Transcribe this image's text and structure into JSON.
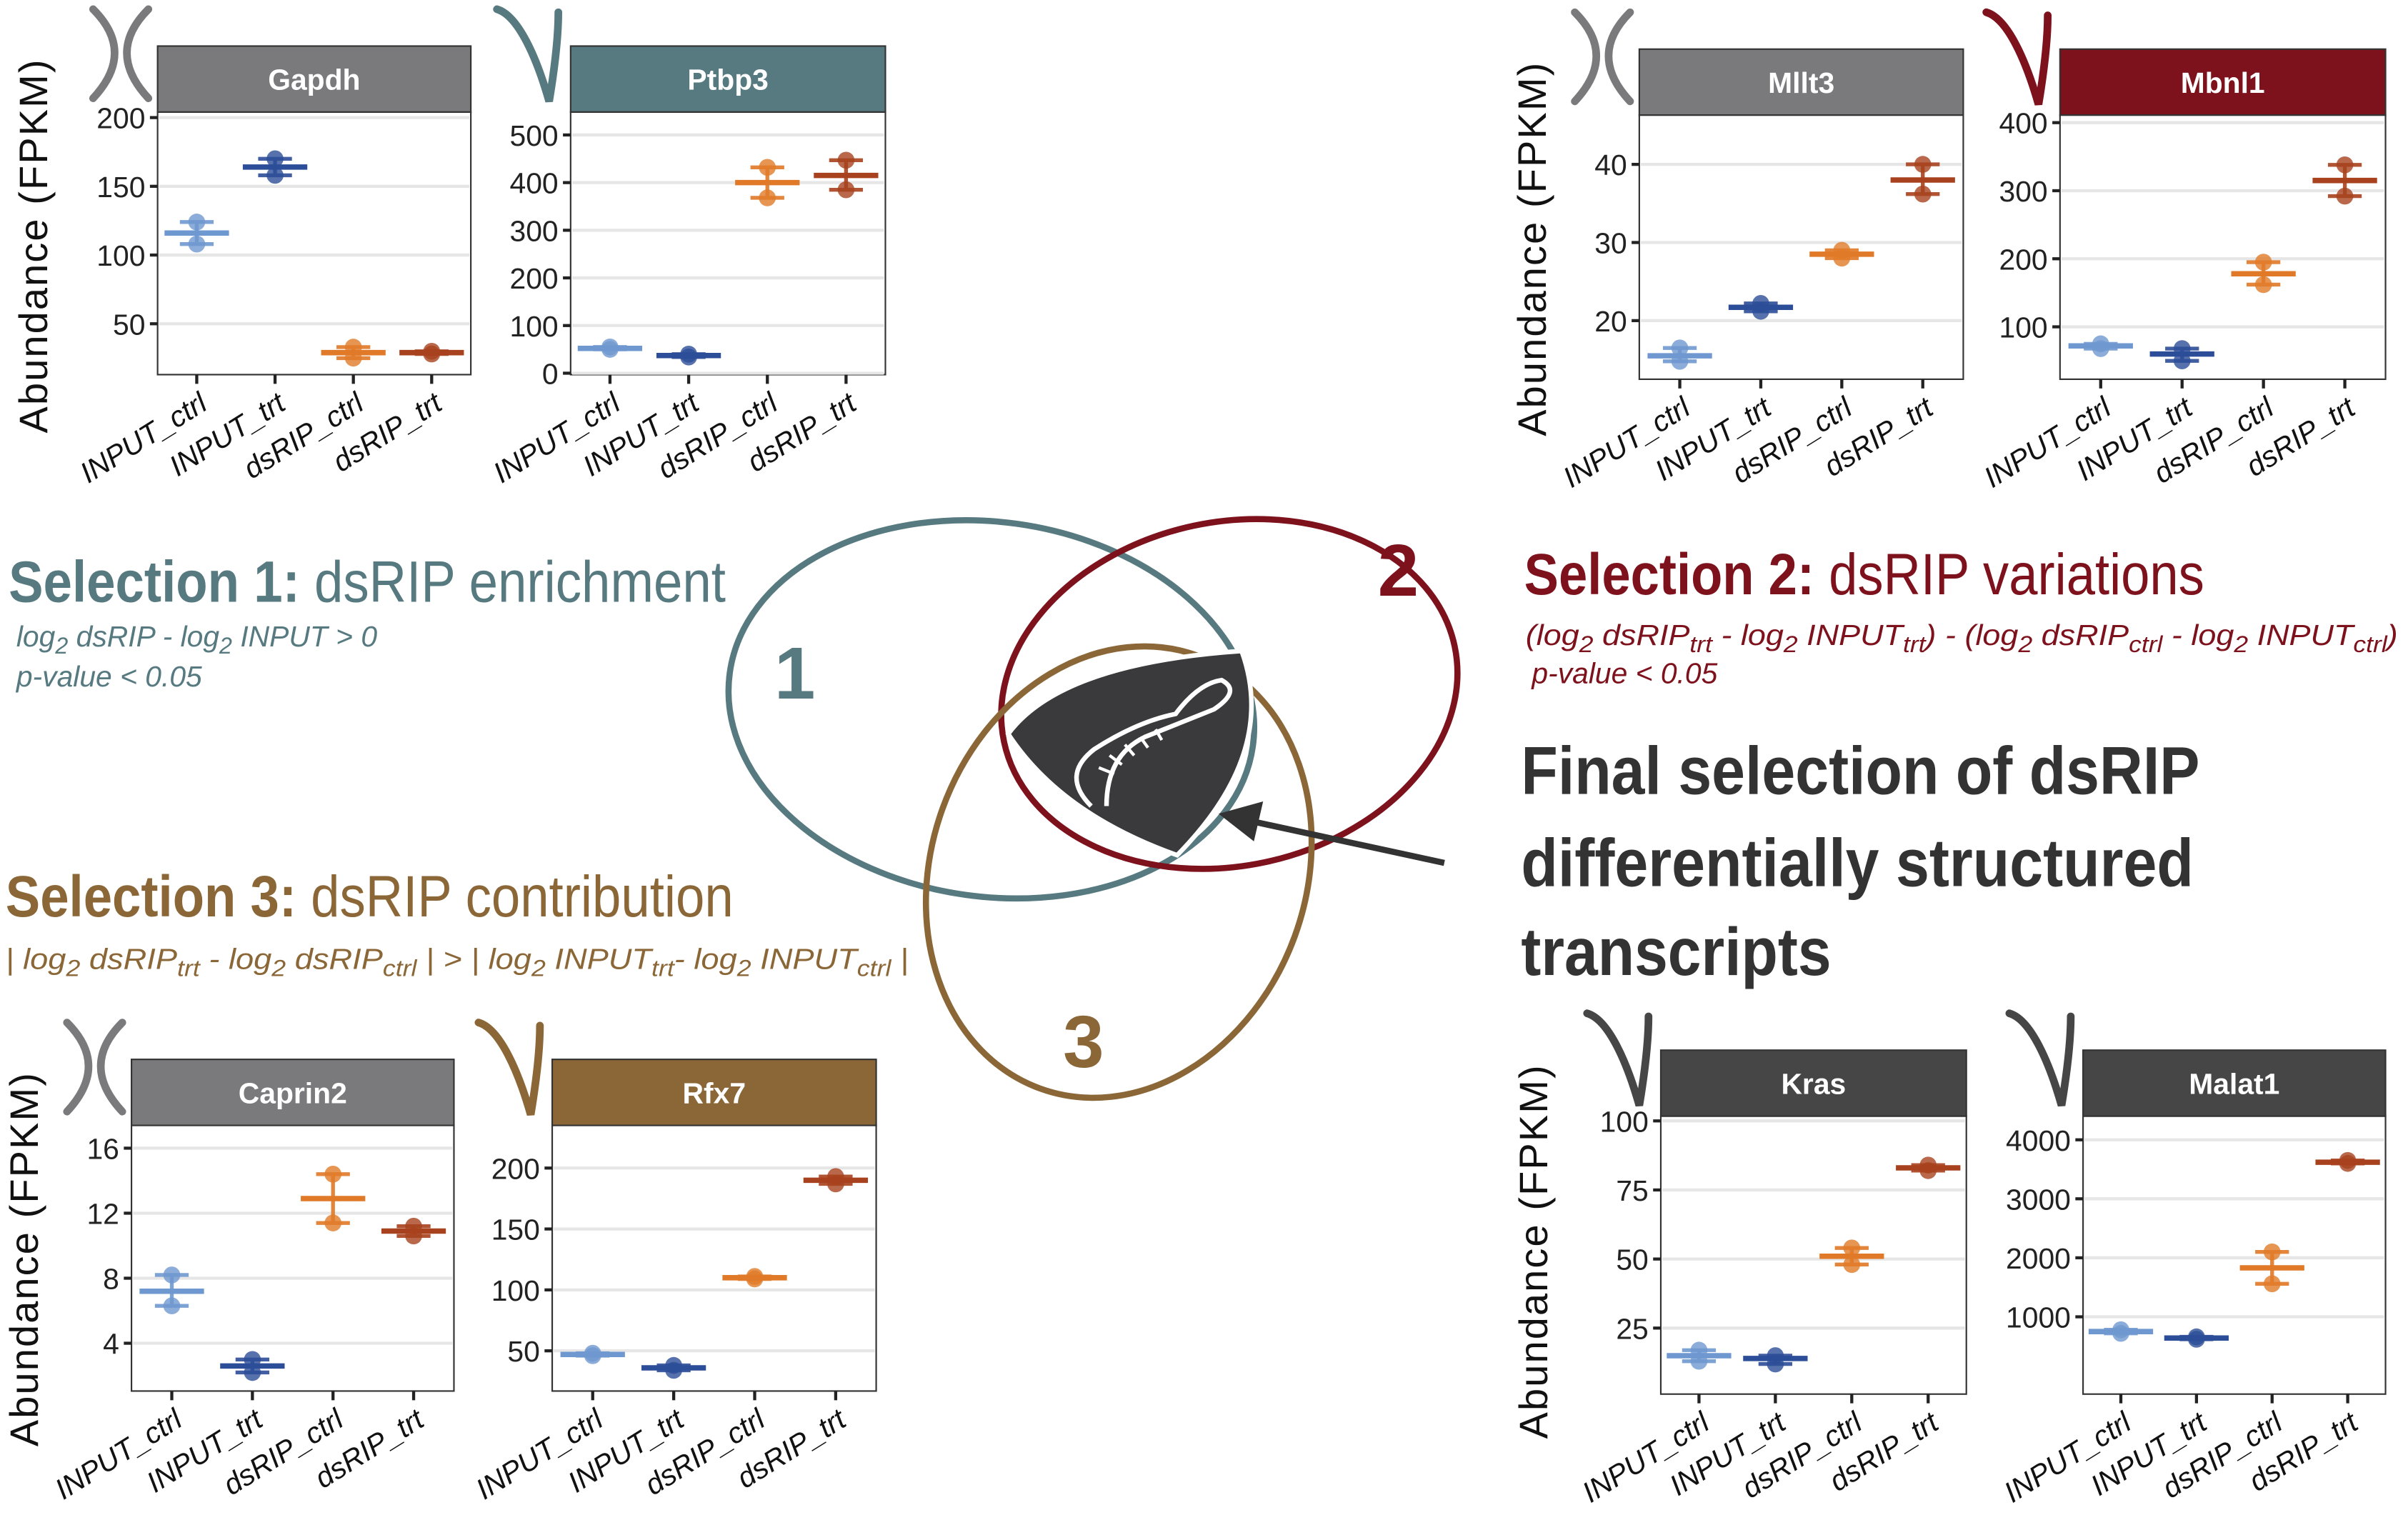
{
  "colors": {
    "INPUT_ctrl": "#6f98d0",
    "INPUT_trt": "#2c4d97",
    "dsRIP_ctrl": "#e07a28",
    "dsRIP_trt": "#a8421e",
    "selection1": "#567a80",
    "selection2": "#7d121d",
    "selection3": "#8b6737",
    "final": "#333333",
    "neutral": "#7a7a7c"
  },
  "ylabel": "Abundance (FPKM)",
  "selection1": {
    "bold": "Selection 1:",
    "rest": " dsRIP enrichment",
    "formula": [
      {
        "t": "log"
      },
      {
        "t": "2",
        "sub": true
      },
      {
        "t": " dsRIP - log"
      },
      {
        "t": "2",
        "sub": true
      },
      {
        "t": " INPUT >  0"
      }
    ],
    "pvalue": "p-value < 0.05"
  },
  "selection2": {
    "bold": "Selection 2:",
    "rest": " dsRIP variations",
    "formula": [
      {
        "t": "(log"
      },
      {
        "t": "2",
        "sub": true
      },
      {
        "t": " dsRIP"
      },
      {
        "t": "trt",
        "sub": true
      },
      {
        "t": " - log"
      },
      {
        "t": "2",
        "sub": true
      },
      {
        "t": " INPUT"
      },
      {
        "t": "trt",
        "sub": true
      },
      {
        "t": ") - (log"
      },
      {
        "t": "2",
        "sub": true
      },
      {
        "t": " dsRIP"
      },
      {
        "t": "ctrl",
        "sub": true
      },
      {
        "t": " - log"
      },
      {
        "t": "2",
        "sub": true
      },
      {
        "t": " INPUT"
      },
      {
        "t": "ctrl",
        "sub": true
      },
      {
        "t": ")"
      }
    ],
    "pvalue": "p-value < 0.05"
  },
  "selection3": {
    "bold": "Selection 3:",
    "rest": " dsRIP contribution",
    "formula": [
      {
        "t": "| log"
      },
      {
        "t": "2",
        "sub": true
      },
      {
        "t": " dsRIP"
      },
      {
        "t": "trt",
        "sub": true
      },
      {
        "t": " - log"
      },
      {
        "t": "2",
        "sub": true
      },
      {
        "t": " dsRIP"
      },
      {
        "t": "ctrl",
        "sub": true
      },
      {
        "t": " | > | log"
      },
      {
        "t": "2",
        "sub": true
      },
      {
        "t": " INPUT"
      },
      {
        "t": "trt",
        "sub": true
      },
      {
        "t": "- log"
      },
      {
        "t": "2",
        "sub": true
      },
      {
        "t": " INPUT"
      },
      {
        "t": "ctrl",
        "sub": true
      },
      {
        "t": " |"
      }
    ]
  },
  "venn": {
    "labels": [
      "1",
      "2",
      "3"
    ],
    "center_icon": "dsRNA-shield-icon"
  },
  "final_selection": {
    "lines": [
      "Final selection of dsRIP",
      "differentially structured",
      "transcripts"
    ]
  },
  "chart_data": [
    {
      "type": "scatter",
      "title": "Gapdh",
      "strip_color": "#7a7a7c",
      "icon": "cross-icon",
      "ylabel": "Abundance (FPKM)",
      "categories": [
        "INPUT_ctrl",
        "INPUT_trt",
        "dsRIP_ctrl",
        "dsRIP_trt"
      ],
      "yticks": [
        50,
        100,
        150,
        200
      ],
      "ylim": [
        13,
        204
      ],
      "grid": true,
      "replicates": [
        [
          124,
          108
        ],
        [
          170,
          158
        ],
        [
          33,
          25
        ],
        [
          30,
          28
        ]
      ],
      "means": [
        116,
        164,
        29,
        29
      ]
    },
    {
      "type": "scatter",
      "title": "Ptbp3",
      "strip_color": "#567a80",
      "icon": "check-icon",
      "categories": [
        "INPUT_ctrl",
        "INPUT_trt",
        "dsRIP_ctrl",
        "dsRIP_trt"
      ],
      "yticks": [
        0,
        100,
        200,
        300,
        400,
        500
      ],
      "ylim": [
        -3,
        548
      ],
      "grid": true,
      "replicates": [
        [
          55,
          50
        ],
        [
          40,
          34
        ],
        [
          432,
          368
        ],
        [
          447,
          385
        ]
      ],
      "means": [
        52,
        37,
        400,
        415
      ]
    },
    {
      "type": "scatter",
      "title": "Mllt3",
      "strip_color": "#7a7a7c",
      "icon": "cross-icon",
      "ylabel": "Abundance (FPKM)",
      "categories": [
        "INPUT_ctrl",
        "INPUT_trt",
        "dsRIP_ctrl",
        "dsRIP_trt"
      ],
      "yticks": [
        20,
        30,
        40
      ],
      "ylim": [
        12.5,
        46.3
      ],
      "grid": true,
      "replicates": [
        [
          16.5,
          14.8
        ],
        [
          22.2,
          21.2
        ],
        [
          29,
          28
        ],
        [
          40,
          36.2
        ]
      ],
      "means": [
        15.5,
        21.7,
        28.5,
        38
      ]
    },
    {
      "type": "scatter",
      "title": "Mbnl1",
      "strip_color": "#7d121d",
      "icon": "check-icon",
      "categories": [
        "INPUT_ctrl",
        "INPUT_trt",
        "dsRIP_ctrl",
        "dsRIP_trt"
      ],
      "yticks": [
        100,
        200,
        300,
        400
      ],
      "ylim": [
        23,
        411
      ],
      "grid": true,
      "replicates": [
        [
          75,
          68
        ],
        [
          68,
          50
        ],
        [
          195,
          162
        ],
        [
          338,
          292
        ]
      ],
      "means": [
        72,
        60,
        178,
        315
      ]
    },
    {
      "type": "scatter",
      "title": "Caprin2",
      "strip_color": "#7a7a7c",
      "icon": "cross-icon",
      "ylabel": "Abundance (FPKM)",
      "categories": [
        "INPUT_ctrl",
        "INPUT_trt",
        "dsRIP_ctrl",
        "dsRIP_trt"
      ],
      "yticks": [
        4,
        8,
        12,
        16
      ],
      "ylim": [
        1.06,
        17.4
      ],
      "grid": true,
      "replicates": [
        [
          8.2,
          6.3
        ],
        [
          3.0,
          2.2
        ],
        [
          14.4,
          11.4
        ],
        [
          11.2,
          10.6
        ]
      ],
      "means": [
        7.2,
        2.6,
        12.9,
        10.9
      ]
    },
    {
      "type": "scatter",
      "title": "Rfx7",
      "strip_color": "#8b6737",
      "icon": "check-icon",
      "categories": [
        "INPUT_ctrl",
        "INPUT_trt",
        "dsRIP_ctrl",
        "dsRIP_trt"
      ],
      "yticks": [
        50,
        100,
        150,
        200
      ],
      "ylim": [
        17,
        235
      ],
      "grid": true,
      "replicates": [
        [
          48,
          46
        ],
        [
          38,
          34
        ],
        [
          111,
          109
        ],
        [
          193,
          187
        ]
      ],
      "means": [
        47,
        36,
        110,
        190
      ]
    },
    {
      "type": "scatter",
      "title": "Kras",
      "strip_color": "#464646",
      "icon": "check-icon",
      "ylabel": "Abundance (FPKM)",
      "categories": [
        "INPUT_ctrl",
        "INPUT_trt",
        "dsRIP_ctrl",
        "dsRIP_trt"
      ],
      "yticks": [
        25,
        50,
        75,
        100
      ],
      "ylim": [
        1.1,
        101.7
      ],
      "grid": true,
      "replicates": [
        [
          17,
          13
        ],
        [
          15,
          12
        ],
        [
          54,
          48
        ],
        [
          84,
          82
        ]
      ],
      "means": [
        15,
        14,
        51,
        83
      ]
    },
    {
      "type": "scatter",
      "title": "Malat1",
      "strip_color": "#464646",
      "icon": "check-icon",
      "categories": [
        "INPUT_ctrl",
        "INPUT_trt",
        "dsRIP_ctrl",
        "dsRIP_trt"
      ],
      "yticks": [
        1000,
        2000,
        3000,
        4000
      ],
      "ylim": [
        -310,
        4400
      ],
      "grid": true,
      "replicates": [
        [
          780,
          720
        ],
        [
          660,
          620
        ],
        [
          2100,
          1560
        ],
        [
          3650,
          3600
        ]
      ],
      "means": [
        750,
        640,
        1830,
        3620
      ]
    }
  ]
}
